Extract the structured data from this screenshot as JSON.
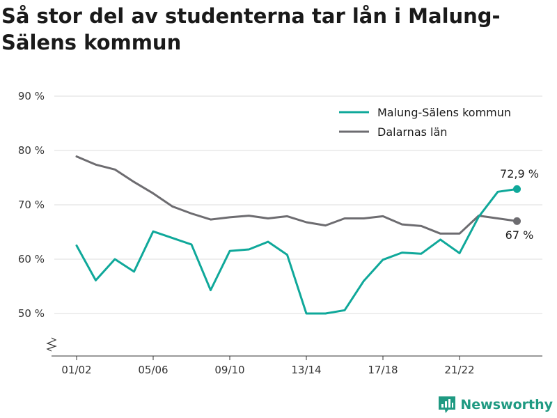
{
  "title": "Så stor del av studenterna tar lån i Malung-Sälens kommun",
  "brand": {
    "name": "Newsworthy"
  },
  "colors": {
    "series1": "#0fa89a",
    "series2": "#6d6c70",
    "grid": "#dddddd",
    "axis": "#333333"
  },
  "chart_data": {
    "type": "line",
    "ylim": [
      42,
      93
    ],
    "y_ticks": [
      50,
      60,
      70,
      80,
      90
    ],
    "y_tick_labels": [
      "50 %",
      "60 %",
      "70 %",
      "80 %",
      "90 %"
    ],
    "x_ticks": [
      0,
      4,
      8,
      12,
      16,
      20
    ],
    "x_tick_labels": [
      "01/02",
      "05/06",
      "09/10",
      "13/14",
      "17/18",
      "21/22"
    ],
    "grid": "horizontal",
    "legend": "top-right",
    "series": [
      {
        "name": "Malung-Sälens kommun",
        "values": [
          62.5,
          56.1,
          60.0,
          57.7,
          65.1,
          63.9,
          62.7,
          54.3,
          61.5,
          61.8,
          63.2,
          60.8,
          50.0,
          50.0,
          50.6,
          56.0,
          59.9,
          61.2,
          61.0,
          63.6,
          61.1,
          67.8,
          72.4,
          72.9
        ],
        "end_label": "72,9 %"
      },
      {
        "name": "Dalarnas län",
        "values": [
          78.9,
          77.4,
          76.5,
          74.2,
          72.1,
          69.7,
          68.4,
          67.3,
          67.7,
          68.0,
          67.5,
          67.9,
          66.8,
          66.2,
          67.5,
          67.5,
          67.9,
          66.4,
          66.1,
          64.7,
          64.7,
          68.0,
          67.5,
          67.0
        ],
        "end_label": "67 %"
      }
    ]
  }
}
